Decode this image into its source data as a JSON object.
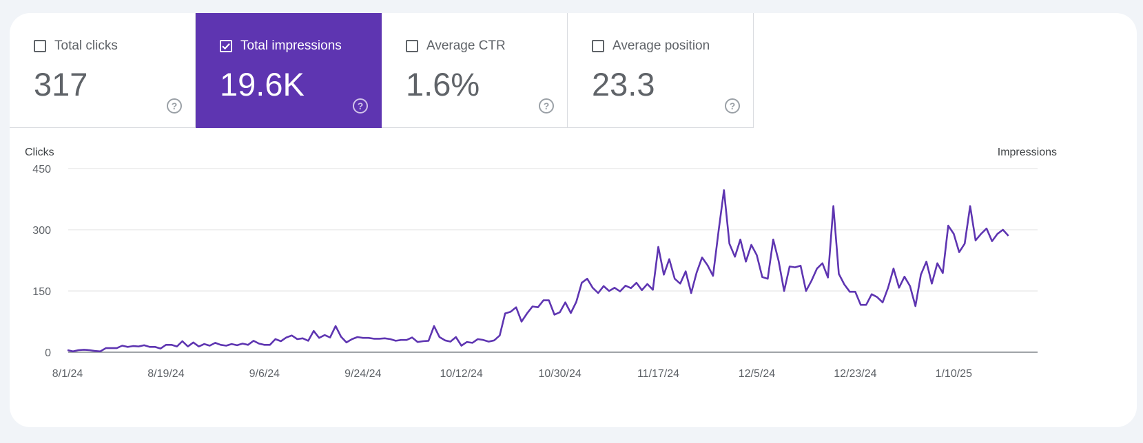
{
  "metrics": [
    {
      "label": "Total clicks",
      "value": "317",
      "selected": false
    },
    {
      "label": "Total impressions",
      "value": "19.6K",
      "selected": true
    },
    {
      "label": "Average CTR",
      "value": "1.6%",
      "selected": false
    },
    {
      "label": "Average position",
      "value": "23.3",
      "selected": false
    }
  ],
  "help_glyph": "?",
  "colors": {
    "accent": "#5e35b1",
    "line": "#5e35b1",
    "grid": "#e0e0e0",
    "axis_text": "#5f6368"
  },
  "chart_data": {
    "type": "line",
    "xlabel": "",
    "left_axis_label": "Clicks",
    "right_axis_label": "Impressions",
    "ylim": [
      0,
      450
    ],
    "yticks": [
      0,
      150,
      300,
      450
    ],
    "start_date": "2024-08-01",
    "xtick_labels": [
      "8/1/24",
      "8/19/24",
      "9/6/24",
      "9/24/24",
      "10/12/24",
      "10/30/24",
      "11/17/24",
      "12/5/24",
      "12/23/24",
      "1/10/25"
    ],
    "series": [
      {
        "values": [
          5,
          2,
          5,
          6,
          5,
          3,
          2,
          10,
          10,
          10,
          16,
          13,
          15,
          14,
          17,
          13,
          13,
          9,
          18,
          18,
          14,
          27,
          14,
          24,
          14,
          20,
          16,
          23,
          18,
          16,
          20,
          17,
          21,
          18,
          28,
          21,
          18,
          18,
          32,
          27,
          36,
          41,
          32,
          34,
          28,
          52,
          35,
          42,
          36,
          64,
          38,
          24,
          32,
          37,
          35,
          35,
          33,
          33,
          34,
          32,
          28,
          30,
          30,
          36,
          25,
          27,
          28,
          64,
          37,
          29,
          26,
          37,
          16,
          25,
          23,
          32,
          30,
          26,
          29,
          41,
          95,
          99,
          110,
          75,
          95,
          112,
          110,
          127,
          127,
          92,
          98,
          122,
          96,
          123,
          170,
          180,
          158,
          145,
          162,
          150,
          158,
          149,
          163,
          157,
          170,
          152,
          167,
          153,
          258,
          190,
          228,
          180,
          168,
          198,
          145,
          195,
          232,
          213,
          187,
          296,
          397,
          266,
          234,
          276,
          222,
          263,
          238,
          184,
          180,
          276,
          223,
          150,
          210,
          208,
          212,
          150,
          175,
          205,
          218,
          183,
          358,
          192,
          166,
          148,
          148,
          116,
          116,
          142,
          135,
          122,
          158,
          205,
          158,
          185,
          162,
          113,
          190,
          222,
          168,
          218,
          194,
          310,
          290,
          245,
          266,
          358,
          274,
          290,
          303,
          272,
          290,
          300,
          285
        ]
      }
    ]
  }
}
